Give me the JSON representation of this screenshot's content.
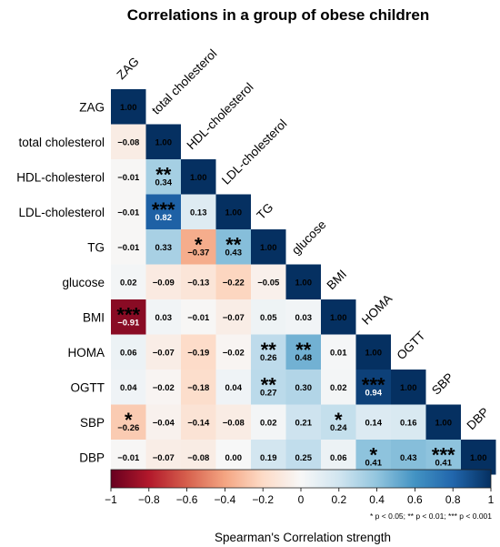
{
  "chart_data": {
    "type": "heatmap",
    "title": "Correlations in a group of obese children",
    "variables": [
      "ZAG",
      "total cholesterol",
      "HDL-cholesterol",
      "LDL-cholesterol",
      "TG",
      "glucose",
      "BMI",
      "HOMA",
      "OGTT",
      "SBP",
      "DBP"
    ],
    "matrix": [
      [
        1.0
      ],
      [
        -0.08,
        1.0
      ],
      [
        -0.01,
        0.34,
        1.0
      ],
      [
        -0.01,
        0.82,
        0.13,
        1.0
      ],
      [
        -0.01,
        0.33,
        -0.37,
        0.43,
        1.0
      ],
      [
        0.02,
        -0.09,
        -0.13,
        -0.22,
        -0.05,
        1.0
      ],
      [
        -0.91,
        0.03,
        -0.01,
        -0.07,
        0.05,
        0.03,
        1.0
      ],
      [
        0.06,
        -0.07,
        -0.19,
        -0.02,
        0.26,
        0.48,
        0.01,
        1.0
      ],
      [
        0.04,
        -0.02,
        -0.18,
        0.04,
        0.27,
        0.3,
        0.02,
        0.94,
        1.0
      ],
      [
        -0.26,
        -0.04,
        -0.14,
        -0.08,
        0.02,
        0.21,
        0.24,
        0.14,
        0.16,
        1.0
      ],
      [
        -0.01,
        -0.07,
        -0.08,
        0.0,
        0.19,
        0.25,
        0.06,
        0.41,
        0.43,
        0.41,
        1.0
      ]
    ],
    "significance": [
      [
        ""
      ],
      [
        "",
        ""
      ],
      [
        "",
        "**",
        ""
      ],
      [
        "",
        "***",
        "",
        ""
      ],
      [
        "",
        "",
        "*",
        "**",
        ""
      ],
      [
        "",
        "",
        "",
        "",
        "",
        ""
      ],
      [
        "***",
        "",
        "",
        "",
        "",
        "",
        ""
      ],
      [
        "",
        "",
        "",
        "",
        "**",
        "**",
        "",
        ""
      ],
      [
        "",
        "",
        "",
        "",
        "**",
        "",
        "",
        "***",
        ""
      ],
      [
        "*",
        "",
        "",
        "",
        "",
        "",
        "*",
        "",
        "",
        ""
      ],
      [
        "",
        "",
        "",
        "",
        "",
        "",
        "",
        "*",
        "",
        "***",
        ""
      ]
    ],
    "colorbar": {
      "range": [
        -1,
        1
      ],
      "ticks": [
        -1,
        -0.8,
        -0.6,
        -0.4,
        -0.2,
        0,
        0.2,
        0.4,
        0.6,
        0.8,
        1
      ],
      "tick_labels": [
        "−1",
        "−0.8",
        "−0.6",
        "−0.4",
        "−0.2",
        "0",
        "0.2",
        "0.4",
        "0.6",
        "0.8",
        "1"
      ],
      "colors": [
        "#67001f",
        "#b2182b",
        "#d6604d",
        "#f4a582",
        "#fddbc7",
        "#f7f7f7",
        "#d1e5f0",
        "#92c5de",
        "#4393c3",
        "#2166ac",
        "#053061"
      ],
      "xlabel": "Spearman's Correlation strength"
    },
    "note": "* p < 0.05; ** p < 0.01; *** p < 0.001"
  }
}
